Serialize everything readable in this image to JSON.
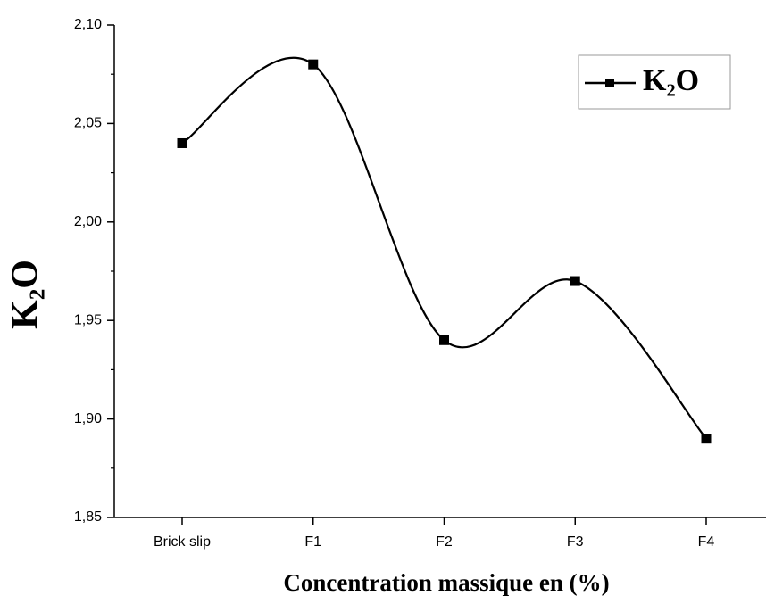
{
  "chart_data": {
    "type": "line",
    "title": null,
    "x_label": "Concentration massique en (%)",
    "y_label": "K₂O",
    "categories": [
      "Brick slip",
      "F1",
      "F2",
      "F3",
      "F4"
    ],
    "series": [
      {
        "name": "K₂O",
        "color": "#000000",
        "values": [
          2.04,
          2.08,
          1.94,
          1.97,
          1.89
        ]
      }
    ],
    "ylim": [
      1.85,
      2.1
    ],
    "yticks": [
      {
        "value": 1.85,
        "label": "1,85"
      },
      {
        "value": 1.9,
        "label": "1,90"
      },
      {
        "value": 1.95,
        "label": "1,95"
      },
      {
        "value": 2.0,
        "label": "2,00"
      },
      {
        "value": 2.05,
        "label": "2,05"
      },
      {
        "value": 2.1,
        "label": "2,10"
      }
    ],
    "grid": false,
    "legend": "upper right",
    "smooth": true
  }
}
